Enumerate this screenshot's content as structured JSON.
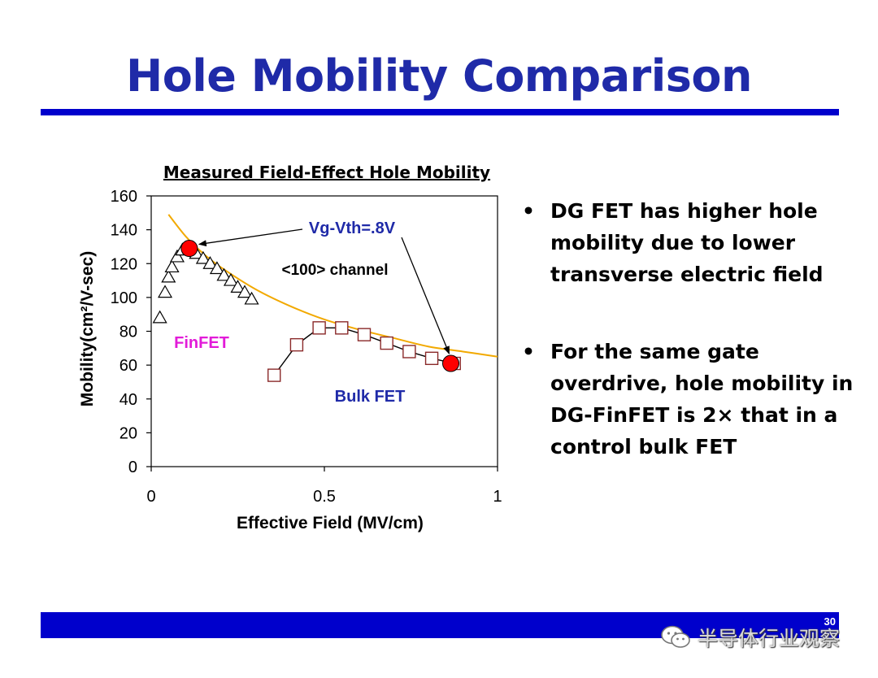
{
  "slide": {
    "title": "Hole Mobility Comparison",
    "bullets": [
      "DG FET has higher hole mobility due to lower transverse electric field",
      "For the same gate overdrive, hole mobility in DG-FinFET is 2× that in a control bulk FET"
    ],
    "page_number": "30",
    "watermark_text": "半导体行业观察",
    "watermark_icon": "wechat-icon",
    "colors": {
      "title": "#1f2aa8",
      "rule": "#0000cc"
    }
  },
  "chart_data": {
    "type": "scatter",
    "title": "Measured Field-Effect Hole Mobility",
    "xlabel": "Effective Field (MV/cm)",
    "ylabel": "Mobility(cm²/V-sec)",
    "xlim": [
      0,
      1
    ],
    "ylim": [
      0,
      160
    ],
    "xticks": [
      0,
      0.5,
      1
    ],
    "xtick_labels": [
      "0",
      "0.5",
      "1"
    ],
    "yticks": [
      0,
      20,
      40,
      60,
      80,
      100,
      120,
      140,
      160
    ],
    "grid": false,
    "series": [
      {
        "name": "FinFET",
        "marker": "triangle",
        "color": "#000000",
        "x": [
          0.025,
          0.04,
          0.05,
          0.06,
          0.075,
          0.09,
          0.11,
          0.13,
          0.15,
          0.17,
          0.19,
          0.21,
          0.23,
          0.25,
          0.27,
          0.29
        ],
        "y": [
          88,
          103,
          112,
          118,
          124,
          128,
          129,
          126,
          123,
          120,
          117,
          113,
          110,
          106,
          103,
          99
        ]
      },
      {
        "name": "Bulk FET",
        "marker": "square",
        "color": "#8b2a2a",
        "x": [
          0.355,
          0.42,
          0.485,
          0.55,
          0.615,
          0.68,
          0.745,
          0.81,
          0.875
        ],
        "y": [
          54,
          72,
          82,
          82,
          78,
          73,
          68,
          64,
          61
        ]
      },
      {
        "name": "",
        "type": "line",
        "color": "#f2a900",
        "x": [
          0.05,
          0.1,
          0.15,
          0.2,
          0.3,
          0.4,
          0.5,
          0.6,
          0.7,
          0.8,
          0.9,
          1.0
        ],
        "y": [
          149,
          136,
          126,
          118,
          105,
          95,
          87,
          81,
          76,
          71,
          68,
          65
        ]
      },
      {
        "name": "",
        "type": "highlight",
        "color": "#ff0000",
        "x": [
          0.11,
          0.865
        ],
        "y": [
          129,
          61
        ]
      }
    ],
    "annotations": [
      {
        "text": "Vg-Vth=.8V",
        "color": "#1f2aa8"
      },
      {
        "text": "<100> channel",
        "color": "#000000"
      },
      {
        "text": "FinFET",
        "color": "#e21bd8"
      },
      {
        "text": "Bulk FET",
        "color": "#1f2aa8"
      }
    ]
  }
}
